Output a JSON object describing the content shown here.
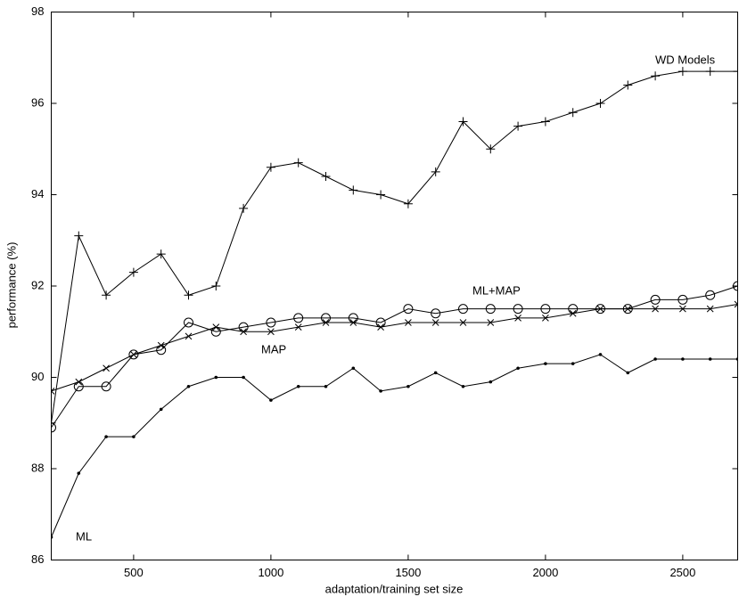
{
  "chart_data": {
    "type": "line",
    "x_label": "adaptation/training set size",
    "y_label": "performance (%)",
    "x": [
      200,
      300,
      400,
      500,
      600,
      700,
      800,
      900,
      1000,
      1100,
      1200,
      1300,
      1400,
      1500,
      1600,
      1700,
      1800,
      1900,
      2000,
      2100,
      2200,
      2300,
      2400,
      2500,
      2600,
      2700
    ],
    "series": [
      {
        "name": "WD Models",
        "color": "#000000",
        "marker": "plus",
        "values": [
          89.0,
          93.1,
          91.8,
          92.3,
          92.7,
          91.8,
          92.0,
          93.7,
          94.6,
          94.7,
          94.4,
          94.1,
          94.0,
          93.8,
          94.5,
          95.6,
          95.0,
          95.5,
          95.6,
          95.8,
          96.0,
          96.4,
          96.6,
          96.7,
          96.7,
          96.7
        ]
      },
      {
        "name": "ML+MAP",
        "color": "#000000",
        "marker": "circle",
        "values": [
          88.9,
          89.8,
          89.8,
          90.5,
          90.6,
          91.2,
          91.0,
          91.1,
          91.2,
          91.3,
          91.3,
          91.3,
          91.2,
          91.5,
          91.4,
          91.5,
          91.5,
          91.5,
          91.5,
          91.5,
          91.5,
          91.5,
          91.7,
          91.7,
          91.8,
          92.0
        ]
      },
      {
        "name": "MAP",
        "color": "#000000",
        "marker": "x",
        "values": [
          89.7,
          89.9,
          90.2,
          90.5,
          90.7,
          90.9,
          91.1,
          91.0,
          91.0,
          91.1,
          91.2,
          91.2,
          91.1,
          91.2,
          91.2,
          91.2,
          91.2,
          91.3,
          91.3,
          91.4,
          91.5,
          91.5,
          91.5,
          91.5,
          91.5,
          91.6
        ]
      },
      {
        "name": "ML",
        "color": "#000000",
        "marker": "dot",
        "values": [
          86.5,
          87.9,
          88.7,
          88.7,
          89.3,
          89.8,
          90.0,
          90.0,
          89.5,
          89.8,
          89.8,
          90.2,
          89.7,
          89.8,
          90.1,
          89.8,
          89.9,
          90.2,
          90.3,
          90.3,
          90.5,
          90.1,
          90.4,
          90.4,
          90.4,
          90.4
        ]
      }
    ],
    "xlim": [
      200,
      2700
    ],
    "ylim": [
      86,
      98
    ],
    "xticks": [
      500,
      1000,
      1500,
      2000,
      2500
    ],
    "yticks": [
      86,
      88,
      90,
      92,
      94,
      96,
      98
    ],
    "grid": false
  }
}
